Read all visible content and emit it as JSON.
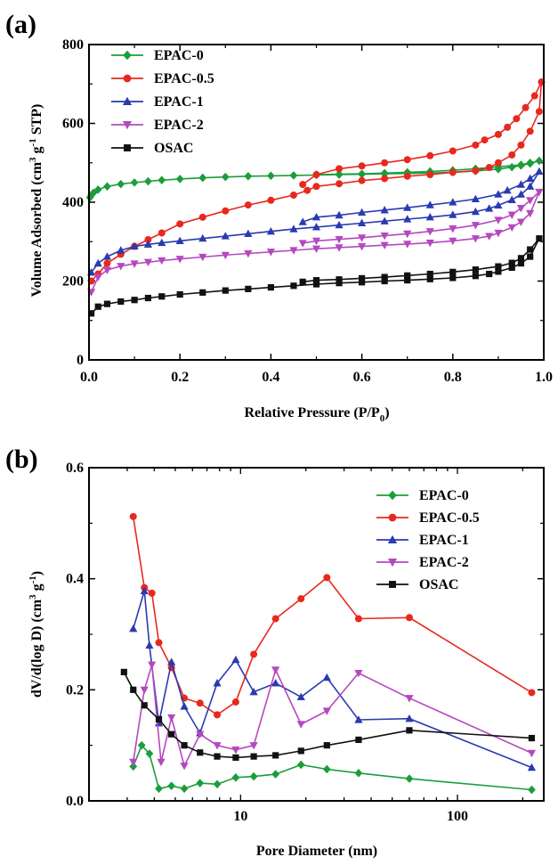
{
  "chart_data": [
    {
      "panel": "(a)",
      "type": "line",
      "xlabel": "Relative Pressure (P/P0)",
      "ylabel": "Volume Adsorbed (cm3 g-1 STP)",
      "xlim": [
        0,
        1
      ],
      "ylim": [
        0,
        800
      ],
      "xticks": [
        "0.0",
        "0.2",
        "0.4",
        "0.6",
        "0.8",
        "1.0"
      ],
      "yticks": [
        "0",
        "200",
        "400",
        "600",
        "800"
      ],
      "grid": false,
      "legend_position": "top-left",
      "series": [
        {
          "name": "EPAC-0",
          "color": "#1a9e3a",
          "marker": "diamond",
          "x": [
            0.002,
            0.005,
            0.01,
            0.02,
            0.04,
            0.07,
            0.1,
            0.13,
            0.16,
            0.2,
            0.25,
            0.3,
            0.35,
            0.4,
            0.45,
            0.5,
            0.55,
            0.6,
            0.65,
            0.7,
            0.75,
            0.8,
            0.85,
            0.9,
            0.93,
            0.95,
            0.97,
            0.99,
            0.97,
            0.95,
            0.9,
            0.85,
            0.8,
            0.75,
            0.7,
            0.65,
            0.6,
            0.55,
            0.5
          ],
          "y": [
            412,
            418,
            424,
            432,
            440,
            446,
            450,
            453,
            456,
            459,
            462,
            464,
            466,
            467,
            468,
            469,
            470,
            471,
            472,
            473,
            474,
            476,
            479,
            484,
            489,
            493,
            498,
            505,
            500,
            495,
            490,
            485,
            481,
            478,
            476,
            474,
            472,
            471,
            470
          ]
        },
        {
          "name": "EPAC-0.5",
          "color": "#e8281e",
          "marker": "circle",
          "x": [
            0.005,
            0.02,
            0.04,
            0.07,
            0.1,
            0.13,
            0.16,
            0.2,
            0.25,
            0.3,
            0.35,
            0.4,
            0.45,
            0.48,
            0.5,
            0.55,
            0.6,
            0.65,
            0.7,
            0.75,
            0.8,
            0.85,
            0.88,
            0.9,
            0.93,
            0.95,
            0.97,
            0.99,
            0.995,
            0.98,
            0.96,
            0.94,
            0.92,
            0.9,
            0.87,
            0.85,
            0.8,
            0.75,
            0.7,
            0.65,
            0.6,
            0.55,
            0.5,
            0.47
          ],
          "y": [
            200,
            218,
            245,
            268,
            288,
            305,
            322,
            345,
            362,
            378,
            393,
            405,
            418,
            430,
            440,
            447,
            455,
            460,
            466,
            470,
            476,
            480,
            488,
            500,
            520,
            545,
            580,
            630,
            705,
            670,
            640,
            612,
            590,
            572,
            558,
            545,
            530,
            518,
            508,
            500,
            492,
            485,
            470,
            445
          ]
        },
        {
          "name": "EPAC-1",
          "color": "#2a3ab0",
          "marker": "triangle-up",
          "x": [
            0.005,
            0.02,
            0.04,
            0.07,
            0.1,
            0.13,
            0.16,
            0.2,
            0.25,
            0.3,
            0.35,
            0.4,
            0.45,
            0.5,
            0.55,
            0.6,
            0.65,
            0.7,
            0.75,
            0.8,
            0.85,
            0.88,
            0.9,
            0.93,
            0.95,
            0.97,
            0.99,
            0.97,
            0.95,
            0.92,
            0.9,
            0.85,
            0.8,
            0.75,
            0.7,
            0.65,
            0.6,
            0.55,
            0.5,
            0.47
          ],
          "y": [
            222,
            245,
            262,
            278,
            288,
            293,
            297,
            302,
            308,
            314,
            320,
            326,
            332,
            337,
            342,
            347,
            352,
            357,
            362,
            368,
            376,
            384,
            392,
            406,
            420,
            440,
            478,
            460,
            445,
            430,
            420,
            408,
            400,
            393,
            386,
            380,
            374,
            367,
            362,
            350
          ]
        },
        {
          "name": "EPAC-2",
          "color": "#b548c0",
          "marker": "triangle-down",
          "x": [
            0.005,
            0.02,
            0.04,
            0.07,
            0.1,
            0.13,
            0.16,
            0.2,
            0.25,
            0.3,
            0.35,
            0.4,
            0.45,
            0.5,
            0.55,
            0.6,
            0.65,
            0.7,
            0.75,
            0.8,
            0.85,
            0.88,
            0.9,
            0.93,
            0.95,
            0.97,
            0.99,
            0.97,
            0.95,
            0.93,
            0.9,
            0.85,
            0.8,
            0.75,
            0.7,
            0.65,
            0.6,
            0.55,
            0.5,
            0.47
          ],
          "y": [
            172,
            210,
            228,
            238,
            244,
            248,
            252,
            256,
            261,
            266,
            270,
            274,
            278,
            282,
            285,
            288,
            291,
            294,
            297,
            302,
            308,
            314,
            322,
            336,
            350,
            372,
            426,
            405,
            385,
            368,
            355,
            342,
            333,
            326,
            320,
            315,
            310,
            306,
            302,
            296
          ]
        },
        {
          "name": "OSAC",
          "color": "#111111",
          "marker": "square",
          "x": [
            0.005,
            0.02,
            0.04,
            0.07,
            0.1,
            0.13,
            0.16,
            0.2,
            0.25,
            0.3,
            0.35,
            0.4,
            0.45,
            0.5,
            0.55,
            0.6,
            0.65,
            0.7,
            0.75,
            0.8,
            0.85,
            0.88,
            0.9,
            0.93,
            0.95,
            0.97,
            0.99,
            0.97,
            0.95,
            0.93,
            0.9,
            0.85,
            0.8,
            0.75,
            0.7,
            0.65,
            0.6,
            0.55,
            0.5,
            0.47
          ],
          "y": [
            118,
            135,
            142,
            148,
            152,
            157,
            161,
            166,
            171,
            176,
            180,
            184,
            188,
            192,
            195,
            197,
            200,
            202,
            205,
            208,
            213,
            218,
            224,
            234,
            245,
            262,
            308,
            280,
            258,
            246,
            237,
            229,
            223,
            218,
            214,
            210,
            207,
            204,
            202,
            198
          ]
        }
      ]
    },
    {
      "panel": "(b)",
      "type": "line",
      "xlabel": "Pore Diameter (nm)",
      "ylabel": "dV/d(log D) (cm3 g-1)",
      "xscale": "log",
      "xlim": [
        2,
        250
      ],
      "ylim": [
        0,
        0.6
      ],
      "xticks": [
        "10",
        "100"
      ],
      "yticks": [
        "0.0",
        "0.2",
        "0.4",
        "0.6"
      ],
      "grid": false,
      "legend_position": "top-right",
      "series": [
        {
          "name": "EPAC-0",
          "color": "#1a9e3a",
          "marker": "diamond",
          "x": [
            3.2,
            3.5,
            3.8,
            4.2,
            4.8,
            5.5,
            6.5,
            7.8,
            9.5,
            11.5,
            14.5,
            19,
            25,
            35,
            60,
            220
          ],
          "y": [
            0.062,
            0.1,
            0.085,
            0.022,
            0.027,
            0.022,
            0.032,
            0.03,
            0.042,
            0.044,
            0.048,
            0.065,
            0.057,
            0.05,
            0.04,
            0.02
          ]
        },
        {
          "name": "EPAC-0.5",
          "color": "#e8281e",
          "marker": "circle",
          "x": [
            3.2,
            3.6,
            3.9,
            4.2,
            4.8,
            5.5,
            6.5,
            7.8,
            9.5,
            11.5,
            14.5,
            19,
            25,
            35,
            60,
            220
          ],
          "y": [
            0.512,
            0.384,
            0.374,
            0.285,
            0.24,
            0.185,
            0.176,
            0.155,
            0.178,
            0.264,
            0.328,
            0.364,
            0.402,
            0.328,
            0.33,
            0.195
          ]
        },
        {
          "name": "EPAC-1",
          "color": "#2a3ab0",
          "marker": "triangle-up",
          "x": [
            3.2,
            3.6,
            3.8,
            4.2,
            4.8,
            5.5,
            6.5,
            7.8,
            9.5,
            11.5,
            14.5,
            19,
            25,
            35,
            60,
            220
          ],
          "y": [
            0.31,
            0.378,
            0.28,
            0.14,
            0.25,
            0.17,
            0.122,
            0.212,
            0.254,
            0.196,
            0.212,
            0.187,
            0.222,
            0.146,
            0.148,
            0.06
          ]
        },
        {
          "name": "EPAC-2",
          "color": "#b548c0",
          "marker": "triangle-down",
          "x": [
            3.2,
            3.6,
            3.9,
            4.3,
            4.8,
            5.5,
            6.5,
            7.8,
            9.5,
            11.5,
            14.5,
            19,
            25,
            35,
            60,
            220
          ],
          "y": [
            0.07,
            0.2,
            0.245,
            0.07,
            0.15,
            0.063,
            0.12,
            0.1,
            0.092,
            0.1,
            0.236,
            0.138,
            0.162,
            0.23,
            0.185,
            0.086
          ]
        },
        {
          "name": "OSAC",
          "color": "#111111",
          "marker": "square",
          "x": [
            2.9,
            3.2,
            3.6,
            4.2,
            4.8,
            5.5,
            6.5,
            7.8,
            9.5,
            11.5,
            14.5,
            19,
            25,
            35,
            60,
            220
          ],
          "y": [
            0.232,
            0.2,
            0.172,
            0.147,
            0.12,
            0.1,
            0.087,
            0.08,
            0.078,
            0.08,
            0.082,
            0.09,
            0.1,
            0.11,
            0.127,
            0.113
          ]
        }
      ]
    }
  ]
}
